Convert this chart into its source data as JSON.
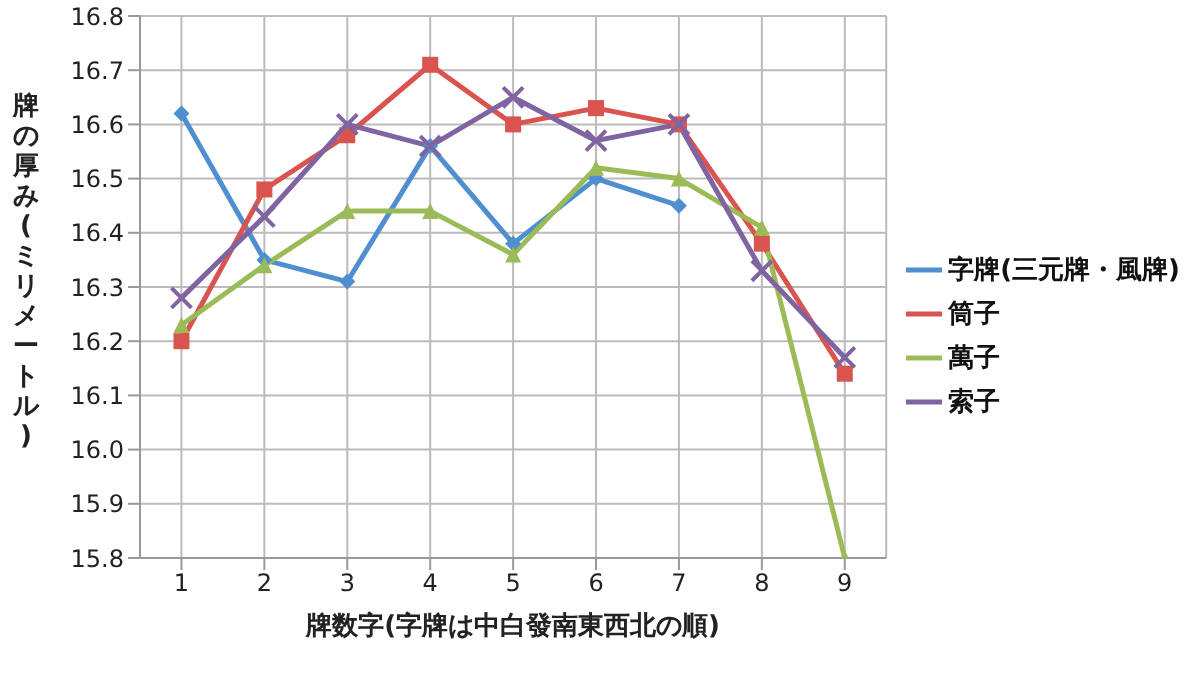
{
  "chart_data": {
    "type": "line",
    "ylabel": "牌の厚み(ミリメートル)",
    "xlabel": "牌数字(字牌は中白發南東西北の順)",
    "categories": [
      "1",
      "2",
      "3",
      "4",
      "5",
      "6",
      "7",
      "8",
      "9"
    ],
    "series": [
      {
        "name": "字牌(三元牌・風牌)",
        "color": "#4f8fcf",
        "marker": "diamond",
        "values": [
          16.62,
          16.35,
          16.31,
          16.56,
          16.38,
          16.5,
          16.45,
          null,
          null
        ]
      },
      {
        "name": "筒子",
        "color": "#d9534f",
        "marker": "square",
        "values": [
          16.2,
          16.48,
          16.58,
          16.71,
          16.6,
          16.63,
          16.6,
          16.38,
          16.14
        ]
      },
      {
        "name": "萬子",
        "color": "#9bbb59",
        "marker": "triangle",
        "values": [
          16.23,
          16.34,
          16.44,
          16.44,
          16.36,
          16.52,
          16.5,
          16.41,
          15.8
        ]
      },
      {
        "name": "索子",
        "color": "#8064a2",
        "marker": "cross",
        "values": [
          16.28,
          16.43,
          16.6,
          16.56,
          16.65,
          16.57,
          16.6,
          16.33,
          16.17
        ]
      }
    ],
    "ylim": [
      15.8,
      16.8
    ],
    "yticks": [
      {
        "value": 15.8,
        "label": "15.8"
      },
      {
        "value": 15.9,
        "label": "15.9"
      },
      {
        "value": 16.0,
        "label": "16.0"
      },
      {
        "value": 16.1,
        "label": "16.1"
      },
      {
        "value": 16.2,
        "label": "16.2"
      },
      {
        "value": 16.3,
        "label": "16.3"
      },
      {
        "value": 16.4,
        "label": "16.4"
      },
      {
        "value": 16.5,
        "label": "16.5"
      },
      {
        "value": 16.6,
        "label": "16.6"
      },
      {
        "value": 16.7,
        "label": "16.7"
      },
      {
        "value": 16.8,
        "label": "16.8"
      }
    ],
    "grid": true,
    "legend": "right",
    "line_style": "solid"
  }
}
